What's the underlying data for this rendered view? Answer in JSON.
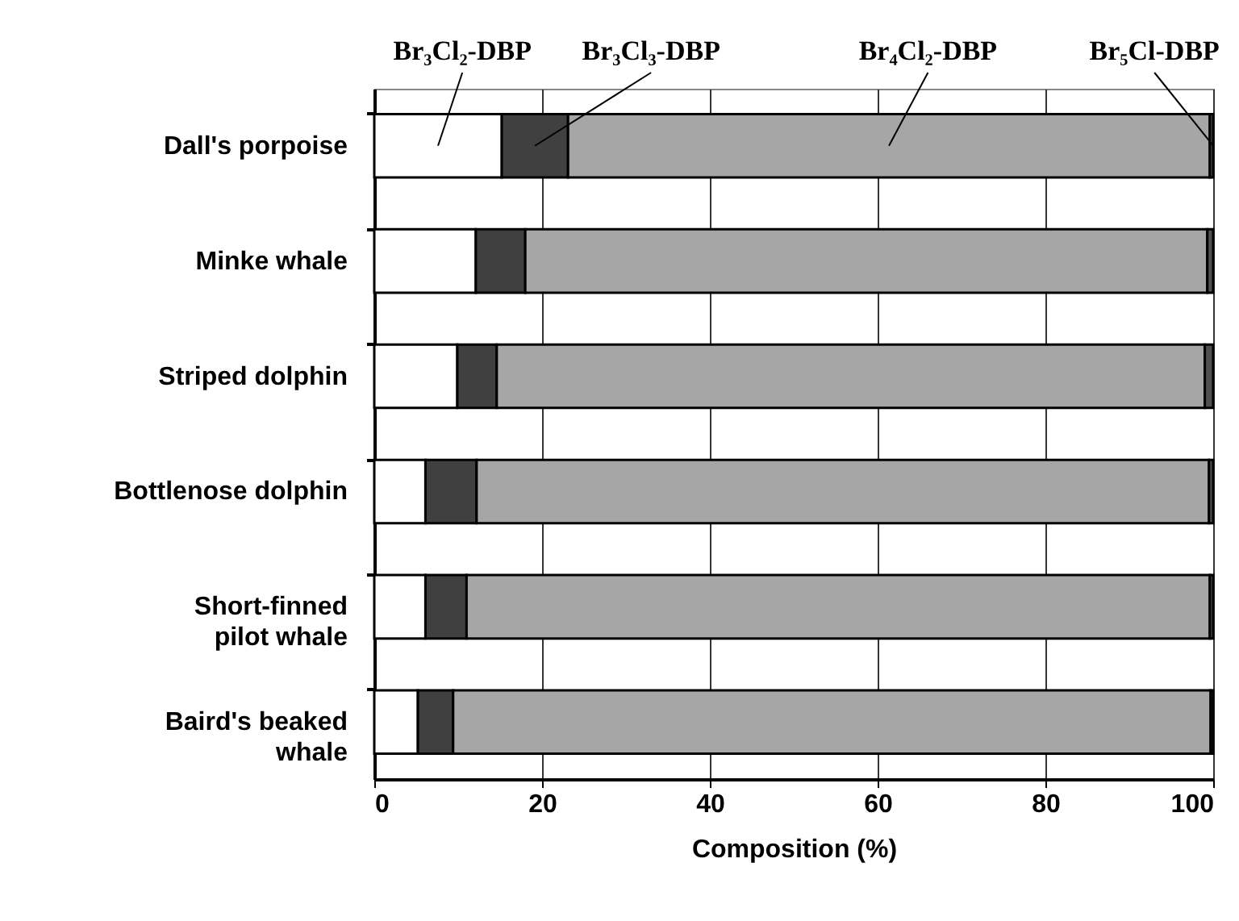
{
  "chart_data": {
    "type": "bar",
    "orientation": "horizontal",
    "stacked": true,
    "xlabel": "Composition (%)",
    "categories": [
      "Dall's porpoise",
      "Minke whale",
      "Striped dolphin",
      "Bottlenose dolphin",
      "Short-finned pilot whale",
      "Baird's beaked whale"
    ],
    "series": [
      {
        "name": "Br₃Cl₂-DBP",
        "color": "#ffffff",
        "values": [
          15.2,
          12.1,
          9.9,
          6.1,
          6.1,
          5.2
        ]
      },
      {
        "name": "Br₃Cl₃-DBP",
        "color": "#404040",
        "values": [
          7.9,
          5.9,
          4.7,
          6.1,
          4.9,
          4.2
        ]
      },
      {
        "name": "Br₄Cl₂-DBP",
        "color": "#a6a6a6",
        "values": [
          76.5,
          81.3,
          84.4,
          87.3,
          88.6,
          90.3
        ]
      },
      {
        "name": "Br₅Cl-DBP",
        "color": "#505050",
        "values": [
          0.4,
          0.7,
          1.0,
          0.5,
          0.4,
          0.3
        ]
      }
    ],
    "xlim": [
      0,
      100
    ],
    "xticks": [
      0,
      20,
      40,
      60,
      80,
      100
    ],
    "grid": "x",
    "legend": false
  }
}
